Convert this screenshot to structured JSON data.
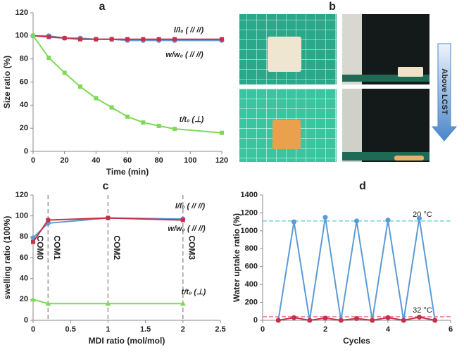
{
  "chart_data": [
    {
      "type": "line",
      "panel_label": "a",
      "x_label": "Time (min)",
      "y_label": "Size ratio (%)",
      "x": [
        0,
        10,
        20,
        30,
        40,
        50,
        60,
        70,
        80,
        90,
        120
      ],
      "xlim": [
        0,
        120
      ],
      "xticks": [
        0,
        20,
        40,
        60,
        80,
        100,
        120
      ],
      "ylim": [
        0,
        120
      ],
      "yticks": [
        0,
        20,
        40,
        60,
        80,
        100,
        120
      ],
      "series": [
        {
          "name": "l/l₀ ( // //)",
          "color": "#5b9bd5",
          "marker": "circle",
          "values": [
            100,
            100,
            98,
            98,
            97,
            97,
            96,
            96,
            96,
            96,
            96
          ]
        },
        {
          "name": "w/w₀ ( // //)",
          "color": "#c8304a",
          "marker": "square",
          "values": [
            100,
            99,
            98,
            97,
            97,
            97,
            97,
            97,
            97,
            97,
            97
          ]
        },
        {
          "name": "t/t₀ (⊥)",
          "color": "#7ed957",
          "marker": "square",
          "values": [
            100,
            81,
            68,
            56,
            46,
            38,
            30,
            25,
            22,
            19.5,
            16
          ]
        }
      ]
    },
    {
      "type": "line",
      "panel_label": "c",
      "x_label": "MDI  ratio (mol/mol)",
      "y_label": "swelling ratio (100%)",
      "x": [
        0,
        0.2,
        1,
        2
      ],
      "xlim": [
        0,
        2.5
      ],
      "xticks": [
        0,
        0.5,
        1,
        1.5,
        2,
        2.5
      ],
      "ylim": [
        0,
        120
      ],
      "yticks": [
        0,
        20,
        40,
        60,
        80,
        100,
        120
      ],
      "vlines": [
        0.2,
        1,
        2
      ],
      "annotations": [
        "COM0",
        "COM1",
        "COM2",
        "COM3"
      ],
      "series": [
        {
          "name": "l/l₀ ( // //)",
          "color": "#5b9bd5",
          "marker": "circle",
          "values": [
            79,
            93,
            98,
            97
          ]
        },
        {
          "name": "w/w₀ ( // //)",
          "color": "#c8304a",
          "marker": "square",
          "values": [
            75,
            96,
            98,
            96
          ]
        },
        {
          "name": "t/t₀ (⊥)",
          "color": "#7ed957",
          "marker": "triangle",
          "values": [
            20,
            16,
            16,
            16
          ]
        }
      ]
    },
    {
      "type": "line",
      "panel_label": "d",
      "x_label": "Cycles",
      "y_label": "Water uptake ratio (%)",
      "x": [
        0.5,
        1,
        1.5,
        2,
        2.5,
        3,
        3.5,
        4,
        4.5,
        5,
        5.5
      ],
      "xlim": [
        0,
        6
      ],
      "xticks": [
        0,
        2,
        4,
        6
      ],
      "ylim": [
        0,
        1400
      ],
      "yticks": [
        0,
        200,
        400,
        600,
        800,
        1000,
        1200,
        1400
      ],
      "reference_lines": [
        {
          "value": 1110,
          "label": "20 °C",
          "color": "#5bc8d8"
        },
        {
          "value": 40,
          "label": "32 °C",
          "color": "#e05060"
        }
      ],
      "series": [
        {
          "color": "#5b9bd5",
          "marker": "circle",
          "values": [
            0,
            1100,
            0,
            1150,
            0,
            1110,
            0,
            1120,
            0,
            1140,
            0
          ]
        },
        {
          "color": "#c8304a",
          "marker": "circle",
          "values": [
            0,
            30,
            0,
            25,
            0,
            20,
            0,
            30,
            0,
            35,
            0
          ]
        }
      ]
    }
  ],
  "photo_panel": {
    "panel_label": "b",
    "annotation": "Above LCST"
  }
}
